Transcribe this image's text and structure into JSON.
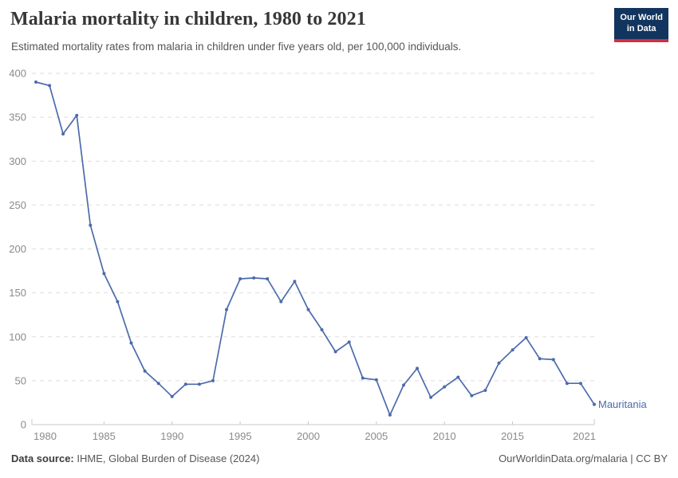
{
  "header": {
    "title": "Malaria mortality in children, 1980 to 2021",
    "subtitle": "Estimated mortality rates from malaria in children under five years old, per 100,000 individuals.",
    "logo": {
      "line1": "Our World",
      "line2": "in Data",
      "bg_color": "#12355f",
      "stripe_color": "#d22e41"
    }
  },
  "chart_data": {
    "type": "line",
    "title": "Malaria mortality in children, 1980 to 2021",
    "xlabel": "",
    "ylabel": "",
    "xlim": [
      1980,
      2021
    ],
    "ylim": [
      0,
      400
    ],
    "x_ticks": [
      1980,
      1985,
      1990,
      1995,
      2000,
      2005,
      2010,
      2015,
      2021
    ],
    "y_ticks": [
      0,
      50,
      100,
      150,
      200,
      250,
      300,
      350,
      400
    ],
    "grid": "horizontal-dashed",
    "legend_position": "end-of-line-label",
    "series": [
      {
        "name": "Mauritania",
        "color": "#4c6bab",
        "x": [
          1980,
          1981,
          1982,
          1983,
          1984,
          1985,
          1986,
          1987,
          1988,
          1989,
          1990,
          1991,
          1992,
          1993,
          1994,
          1995,
          1996,
          1997,
          1998,
          1999,
          2000,
          2001,
          2002,
          2003,
          2004,
          2005,
          2006,
          2007,
          2008,
          2009,
          2010,
          2011,
          2012,
          2013,
          2014,
          2015,
          2016,
          2017,
          2018,
          2019,
          2020,
          2021
        ],
        "values": [
          390,
          386,
          331,
          352,
          227,
          172,
          140,
          93,
          61,
          47,
          32,
          46,
          46,
          50,
          131,
          166,
          167,
          166,
          140,
          163,
          131,
          108,
          83,
          94,
          53,
          51,
          11,
          45,
          64,
          31,
          43,
          54,
          33,
          39,
          70,
          85,
          99,
          75,
          74,
          47,
          47,
          23
        ]
      }
    ],
    "style": {
      "grid_color": "#dedede",
      "baseline_color": "#c8c8c8",
      "tick_label_color": "#8a8a8a"
    }
  },
  "footer": {
    "source_label": "Data source:",
    "source_text": " IHME, Global Burden of Disease (2024)",
    "attribution": "OurWorldinData.org/malaria | CC BY"
  }
}
